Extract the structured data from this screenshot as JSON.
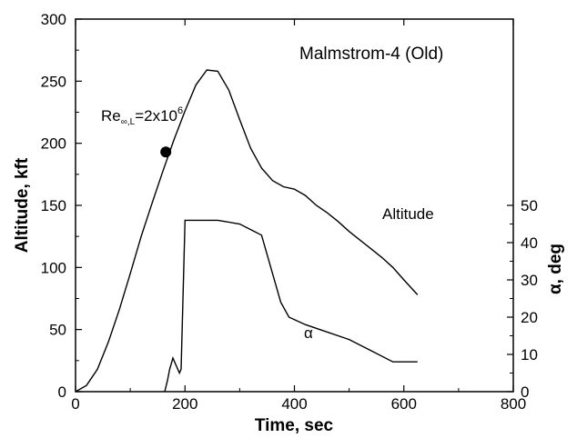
{
  "chart_data": {
    "type": "line",
    "title": "Malmstrom-4 (Old)",
    "xlabel": "Time, sec",
    "ylabel_left": "Altitude, kft",
    "ylabel_right": "α, deg",
    "xlim": [
      0,
      800
    ],
    "ylim_left": [
      0,
      300
    ],
    "ylim_right": [
      0,
      100
    ],
    "x_ticks": [
      "0",
      "200",
      "400",
      "600",
      "800"
    ],
    "y_left_ticks": [
      "0",
      "50",
      "100",
      "150",
      "200",
      "250",
      "300"
    ],
    "y_right_ticks": [
      "0",
      "10",
      "20",
      "30",
      "40",
      "50"
    ],
    "grid": false,
    "series": [
      {
        "name": "Altitude",
        "axis": "left",
        "points": [
          [
            0,
            0
          ],
          [
            20,
            5
          ],
          [
            40,
            18
          ],
          [
            60,
            40
          ],
          [
            80,
            66
          ],
          [
            100,
            95
          ],
          [
            120,
            125
          ],
          [
            140,
            152
          ],
          [
            160,
            178
          ],
          [
            180,
            203
          ],
          [
            200,
            226
          ],
          [
            220,
            247
          ],
          [
            240,
            259
          ],
          [
            260,
            258
          ],
          [
            280,
            243
          ],
          [
            300,
            219
          ],
          [
            320,
            196
          ],
          [
            340,
            180
          ],
          [
            360,
            170
          ],
          [
            380,
            165
          ],
          [
            400,
            163
          ],
          [
            420,
            158
          ],
          [
            440,
            150
          ],
          [
            460,
            144
          ],
          [
            480,
            137
          ],
          [
            500,
            129
          ],
          [
            520,
            122
          ],
          [
            540,
            115
          ],
          [
            560,
            108
          ],
          [
            580,
            100
          ],
          [
            600,
            90
          ],
          [
            625,
            78
          ]
        ]
      },
      {
        "name": "α",
        "axis": "right",
        "points": [
          [
            163,
            0
          ],
          [
            168,
            3
          ],
          [
            172,
            6
          ],
          [
            178,
            9
          ],
          [
            190,
            5
          ],
          [
            193,
            6
          ],
          [
            200,
            46
          ],
          [
            210,
            46
          ],
          [
            240,
            46
          ],
          [
            260,
            46
          ],
          [
            300,
            45
          ],
          [
            340,
            42
          ],
          [
            375,
            24
          ],
          [
            390,
            20
          ],
          [
            420,
            18
          ],
          [
            460,
            16
          ],
          [
            500,
            14
          ],
          [
            540,
            11
          ],
          [
            580,
            8
          ],
          [
            625,
            8
          ]
        ]
      }
    ],
    "annotations": {
      "reynolds_label": "Re",
      "reynolds_sub": "∞,L",
      "reynolds_value": "=2x10",
      "reynolds_exp": "6",
      "reynolds_marker": {
        "x": 165,
        "y": 193
      },
      "altitude_label": "Altitude",
      "alpha_label": "α"
    }
  }
}
